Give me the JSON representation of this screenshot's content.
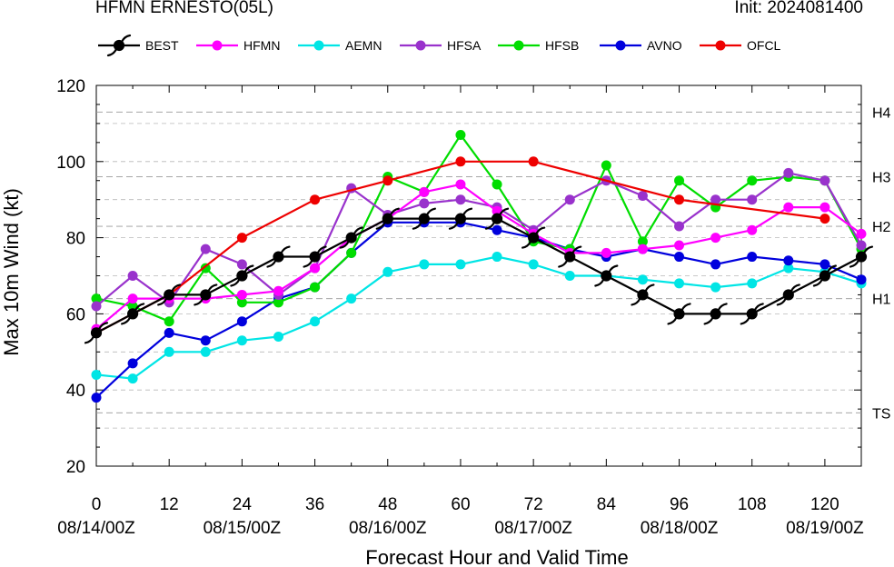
{
  "header": {
    "title": "HFMN ERNESTO(05L)",
    "init": "Init: 2024081400"
  },
  "chart_data": {
    "type": "line",
    "title": "HFMN ERNESTO(05L)",
    "subtitle": "Init: 2024081400",
    "xlabel": "Forecast Hour and Valid Time",
    "ylabel": "Max 10m Wind (kt)",
    "xlim": [
      0,
      126
    ],
    "ylim": [
      20,
      120
    ],
    "xticks": [
      0,
      12,
      24,
      36,
      48,
      60,
      72,
      84,
      96,
      108,
      120
    ],
    "xtick_labels": [
      "0",
      "12",
      "24",
      "36",
      "48",
      "60",
      "72",
      "84",
      "96",
      "108",
      "120"
    ],
    "date_labels": [
      {
        "x": 0,
        "label": "08/14/00Z"
      },
      {
        "x": 24,
        "label": "08/15/00Z"
      },
      {
        "x": 48,
        "label": "08/16/00Z"
      },
      {
        "x": 72,
        "label": "08/17/00Z"
      },
      {
        "x": 96,
        "label": "08/18/00Z"
      },
      {
        "x": 120,
        "label": "08/19/00Z"
      }
    ],
    "yticks": [
      20,
      40,
      60,
      80,
      100,
      120
    ],
    "intensity_lines": [
      {
        "value": 34,
        "label": "TS"
      },
      {
        "value": 64,
        "label": "H1"
      },
      {
        "value": 83,
        "label": "H2"
      },
      {
        "value": 96,
        "label": "H3"
      },
      {
        "value": 113,
        "label": "H4"
      }
    ],
    "grid": true,
    "legend_position": "top",
    "series": [
      {
        "name": "HFMN",
        "color": "#ff00ff",
        "x": [
          0,
          6,
          12,
          18,
          24,
          30,
          36,
          42,
          48,
          54,
          60,
          66,
          72,
          78,
          84,
          90,
          96,
          102,
          108,
          114,
          120,
          126
        ],
        "y": [
          56,
          64,
          64,
          64,
          65,
          66,
          72,
          80,
          85,
          92,
          94,
          87,
          81,
          76,
          76,
          77,
          78,
          80,
          82,
          88,
          88,
          81
        ]
      },
      {
        "name": "AEMN",
        "color": "#00e5e5",
        "x": [
          0,
          6,
          12,
          18,
          24,
          30,
          36,
          42,
          48,
          54,
          60,
          66,
          72,
          78,
          84,
          90,
          96,
          102,
          108,
          114,
          120,
          126
        ],
        "y": [
          44,
          43,
          50,
          50,
          53,
          54,
          58,
          64,
          71,
          73,
          73,
          75,
          73,
          70,
          70,
          69,
          68,
          67,
          68,
          72,
          71,
          68
        ]
      },
      {
        "name": "HFSA",
        "color": "#9932cc",
        "x": [
          0,
          6,
          12,
          18,
          24,
          30,
          36,
          42,
          48,
          54,
          60,
          66,
          72,
          78,
          84,
          90,
          96,
          102,
          108,
          114,
          120,
          126
        ],
        "y": [
          62,
          70,
          63,
          77,
          73,
          65,
          72,
          93,
          86,
          89,
          90,
          88,
          82,
          90,
          95,
          91,
          83,
          90,
          90,
          97,
          95,
          78
        ]
      },
      {
        "name": "HFSB",
        "color": "#00dd00",
        "x": [
          0,
          6,
          12,
          18,
          24,
          30,
          36,
          42,
          48,
          54,
          60,
          66,
          72,
          78,
          84,
          90,
          96,
          102,
          108,
          114,
          120,
          126
        ],
        "y": [
          64,
          62,
          58,
          72,
          63,
          63,
          67,
          76,
          96,
          92,
          107,
          94,
          79,
          77,
          99,
          79,
          95,
          88,
          95,
          96,
          95,
          77
        ]
      },
      {
        "name": "AVNO",
        "color": "#0000dd",
        "x": [
          0,
          6,
          12,
          18,
          24,
          30,
          36,
          42,
          48,
          54,
          60,
          66,
          72,
          78,
          84,
          90,
          96,
          102,
          108,
          114,
          120,
          126
        ],
        "y": [
          38,
          47,
          55,
          53,
          58,
          64,
          67,
          76,
          84,
          84,
          84,
          82,
          80,
          77,
          75,
          77,
          75,
          73,
          75,
          74,
          73,
          69
        ]
      },
      {
        "name": "OFCL",
        "color": "#ee0000",
        "x": [
          0,
          12,
          24,
          36,
          48,
          60,
          72,
          96,
          120
        ],
        "y": [
          55,
          65,
          80,
          90,
          95,
          100,
          100,
          90,
          85
        ]
      },
      {
        "name": "BEST",
        "color": "#000000",
        "marker": "hurricane",
        "x": [
          0,
          6,
          12,
          18,
          24,
          30,
          36,
          42,
          48,
          54,
          60,
          66,
          72,
          78,
          84,
          90,
          96,
          102,
          108,
          114,
          120,
          126
        ],
        "y": [
          55,
          60,
          65,
          65,
          70,
          75,
          75,
          80,
          85,
          85,
          85,
          85,
          80,
          75,
          70,
          65,
          60,
          60,
          60,
          65,
          70,
          75
        ]
      }
    ],
    "legend_order": [
      "BEST",
      "HFMN",
      "AEMN",
      "HFSA",
      "HFSB",
      "AVNO",
      "OFCL"
    ]
  }
}
